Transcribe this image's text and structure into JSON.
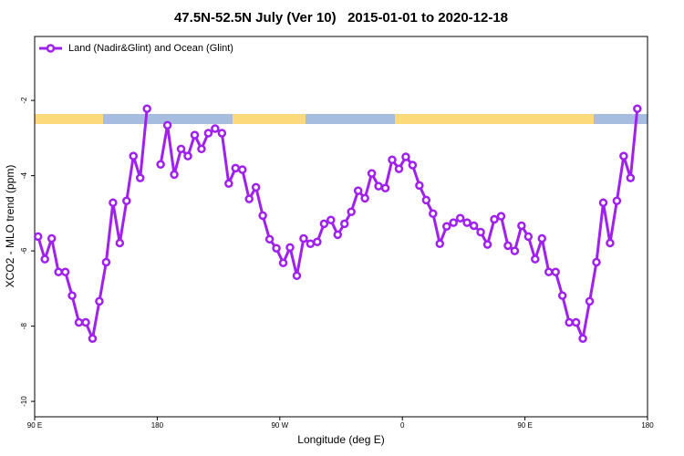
{
  "chart_data": {
    "type": "line",
    "title": "47.5N-52.5N July (Ver 10)   2015-01-01 to 2020-12-18",
    "x_label": "Longitude (deg E)",
    "y_label": "XCO2 - MLO trend (ppm)",
    "x": [
      92.5,
      97.5,
      102.5,
      107.5,
      112.5,
      117.5,
      122.5,
      127.5,
      132.5,
      137.5,
      142.5,
      147.5,
      152.5,
      157.5,
      162.5,
      167.5,
      172.5,
      177.5,
      182.5,
      187.5,
      192.5,
      197.5,
      202.5,
      207.5,
      212.5,
      217.5,
      222.5,
      227.5,
      232.5,
      237.5,
      242.5,
      247.5,
      252.5,
      257.5,
      262.5,
      267.5,
      272.5,
      277.5,
      282.5,
      287.5,
      292.5,
      297.5,
      302.5,
      307.5,
      312.5,
      317.5,
      322.5,
      327.5,
      332.5,
      337.5,
      342.5,
      347.5,
      352.5,
      357.5,
      362.5,
      367.5,
      372.5,
      377.5,
      382.5,
      387.5,
      392.5,
      397.5,
      402.5,
      407.5,
      412.5,
      417.5,
      422.5,
      427.5,
      432.5,
      437.5,
      442.5,
      447.5,
      452.5,
      457.5,
      462.5,
      467.5,
      472.5,
      477.5,
      482.5,
      487.5,
      492.5,
      497.5,
      502.5,
      507.5,
      512.5,
      517.5,
      522.5,
      527.5,
      532.5
    ],
    "series": [
      {
        "name": "Land (Nadir&Glint) and Ocean (Glint)",
        "color": "#a020f0",
        "values": [
          -5.62,
          -6.22,
          -5.67,
          -6.56,
          -6.56,
          -7.19,
          -7.9,
          -7.9,
          -8.33,
          -7.34,
          -6.3,
          -4.72,
          -5.79,
          -4.67,
          -3.48,
          -4.06,
          -2.22,
          null,
          -3.7,
          -2.66,
          -3.97,
          -3.29,
          -3.48,
          -2.92,
          -3.29,
          -2.87,
          -2.75,
          -2.87,
          -4.21,
          -3.8,
          -3.84,
          -4.62,
          -4.31,
          -5.06,
          -5.69,
          -5.93,
          -6.32,
          -5.91,
          -6.66,
          -5.67,
          -5.81,
          -5.76,
          -5.28,
          -5.18,
          -5.57,
          -5.28,
          -4.96,
          -4.4,
          -4.6,
          -3.94,
          -4.28,
          -4.33,
          -3.58,
          -3.82,
          -3.5,
          -3.72,
          -4.26,
          -4.65,
          -5.01,
          -5.81,
          -5.35,
          -5.25,
          -5.13,
          -5.25,
          -5.33,
          -5.5,
          -5.83,
          -5.16,
          -5.08,
          -5.86,
          -6.0,
          -5.33,
          -5.62,
          -6.22,
          -5.67,
          -6.56,
          -6.56,
          -7.19,
          -7.9,
          -7.9,
          -8.33,
          -7.34,
          -6.3,
          -4.72,
          -5.79,
          -4.67,
          -3.48,
          -4.06,
          -2.22
        ]
      }
    ],
    "xlim": [
      90,
      540
    ],
    "xticks": [
      {
        "value": 90,
        "label": "90 E"
      },
      180,
      {
        "value": 270,
        "label": "90 W"
      },
      {
        "value": 360,
        "label": "0"
      },
      {
        "value": 450,
        "label": "90 E"
      },
      {
        "value": 540,
        "label": "180"
      }
    ],
    "ylim": [
      -10.41,
      -0.3
    ],
    "yticks": [
      -10,
      -8,
      -6,
      -4,
      -2
    ],
    "legend": "top-left"
  }
}
